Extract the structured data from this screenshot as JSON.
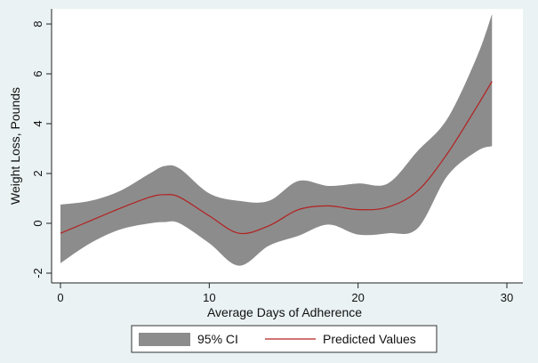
{
  "chart_data": {
    "type": "line",
    "xlabel": "Average Days of Adherence",
    "ylabel": "Weight Loss, Pounds",
    "xlim": [
      0,
      30
    ],
    "ylim": [
      -2,
      8
    ],
    "x_ticks": [
      "0",
      "10",
      "20",
      "30"
    ],
    "x_tick_values": [
      0,
      10,
      20,
      30
    ],
    "y_ticks": [
      "-2",
      "0",
      "2",
      "4",
      "6",
      "8"
    ],
    "y_tick_values": [
      -2,
      0,
      2,
      4,
      6,
      8
    ],
    "grid": false,
    "legend_position": "bottom",
    "x": [
      0,
      2,
      4,
      6,
      7,
      8,
      10,
      12,
      14,
      16,
      18,
      20,
      22,
      24,
      26,
      28,
      29
    ],
    "series": [
      {
        "name": "Predicted Values",
        "color": "#b42020",
        "values": [
          -0.4,
          0.1,
          0.6,
          1.05,
          1.15,
          1.05,
          0.3,
          -0.4,
          -0.1,
          0.55,
          0.7,
          0.55,
          0.65,
          1.3,
          2.8,
          4.7,
          5.7
        ]
      }
    ],
    "band": {
      "name": "95% CI",
      "color": "#8c8c8c",
      "lower": [
        -1.6,
        -0.8,
        -0.25,
        0.0,
        0.05,
        0.0,
        -0.8,
        -1.7,
        -0.9,
        -0.5,
        -0.05,
        -0.45,
        -0.4,
        -0.2,
        1.9,
        2.9,
        3.1
      ],
      "upper": [
        0.75,
        0.9,
        1.3,
        2.0,
        2.3,
        2.2,
        1.2,
        0.9,
        0.9,
        1.7,
        1.5,
        1.6,
        1.6,
        2.9,
        4.2,
        6.7,
        8.4
      ]
    },
    "legend": [
      "95% CI",
      "Predicted Values"
    ]
  }
}
